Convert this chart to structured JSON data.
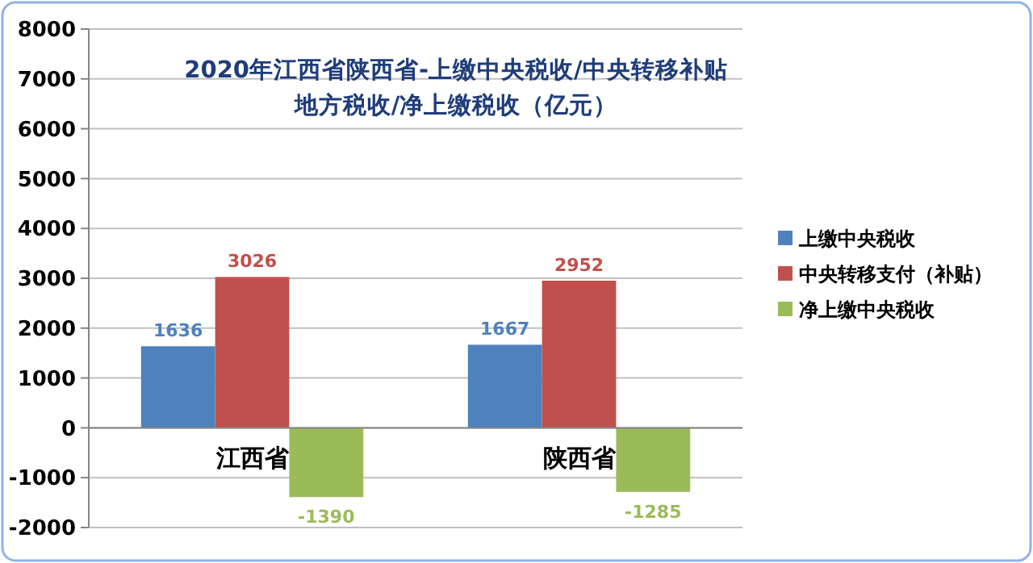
{
  "chart_data": {
    "type": "bar",
    "title": "2020年江西省陕西省-上缴中央税收/中央转移补贴地方税收/净上缴税收（亿元）",
    "categories": [
      "江西省",
      "陕西省"
    ],
    "series": [
      {
        "name": "上缴中央税收",
        "color": "#4f81bd",
        "values": [
          1636,
          1667
        ]
      },
      {
        "name": "中央转移支付（补贴）",
        "color": "#c0504d",
        "values": [
          3026,
          2952
        ]
      },
      {
        "name": "净上缴中央税收",
        "color": "#9bbb59",
        "values": [
          -1390,
          -1285
        ]
      }
    ],
    "ylim": [
      -2000,
      8000
    ],
    "yticks": [
      -2000,
      -1000,
      0,
      1000,
      2000,
      3000,
      4000,
      5000,
      6000,
      7000,
      8000
    ],
    "grid": "y",
    "legend": "right",
    "data_labels": true
  }
}
